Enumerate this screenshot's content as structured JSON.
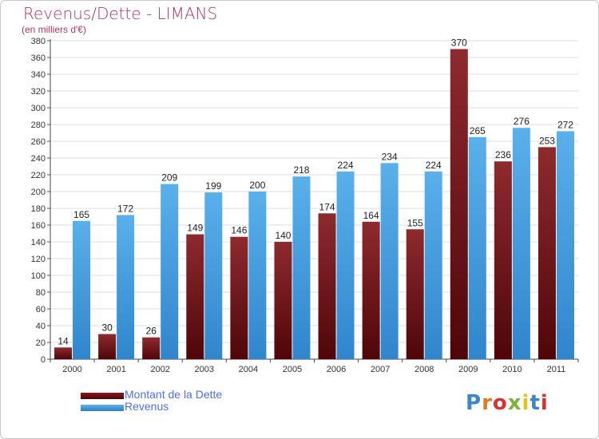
{
  "chart_data": {
    "type": "bar",
    "title": "Revenus/Dette - LIMANS",
    "subtitle": "(en milliers d'€)",
    "categories": [
      "2000",
      "2001",
      "2002",
      "2003",
      "2004",
      "2005",
      "2006",
      "2007",
      "2008",
      "2009",
      "2010",
      "2011"
    ],
    "series": [
      {
        "name": "Montant de la Dette",
        "color": "#6b0d12",
        "values": [
          14,
          30,
          26,
          149,
          146,
          140,
          174,
          164,
          155,
          370,
          236,
          253
        ]
      },
      {
        "name": "Revenus",
        "color": "#3a96d8",
        "values": [
          165,
          172,
          209,
          199,
          200,
          218,
          224,
          234,
          224,
          265,
          276,
          272
        ]
      }
    ],
    "ylim": [
      0,
      380
    ],
    "ytick_step": 20,
    "grid": true,
    "legend": "bottom-left"
  },
  "logo": {
    "text": "Proxiti",
    "letter_colors": [
      "#3b86cc",
      "#e07b20",
      "#e02f2f",
      "#7fb23a",
      "#e2c21e",
      "#3b86cc",
      "#e02f2f"
    ]
  }
}
